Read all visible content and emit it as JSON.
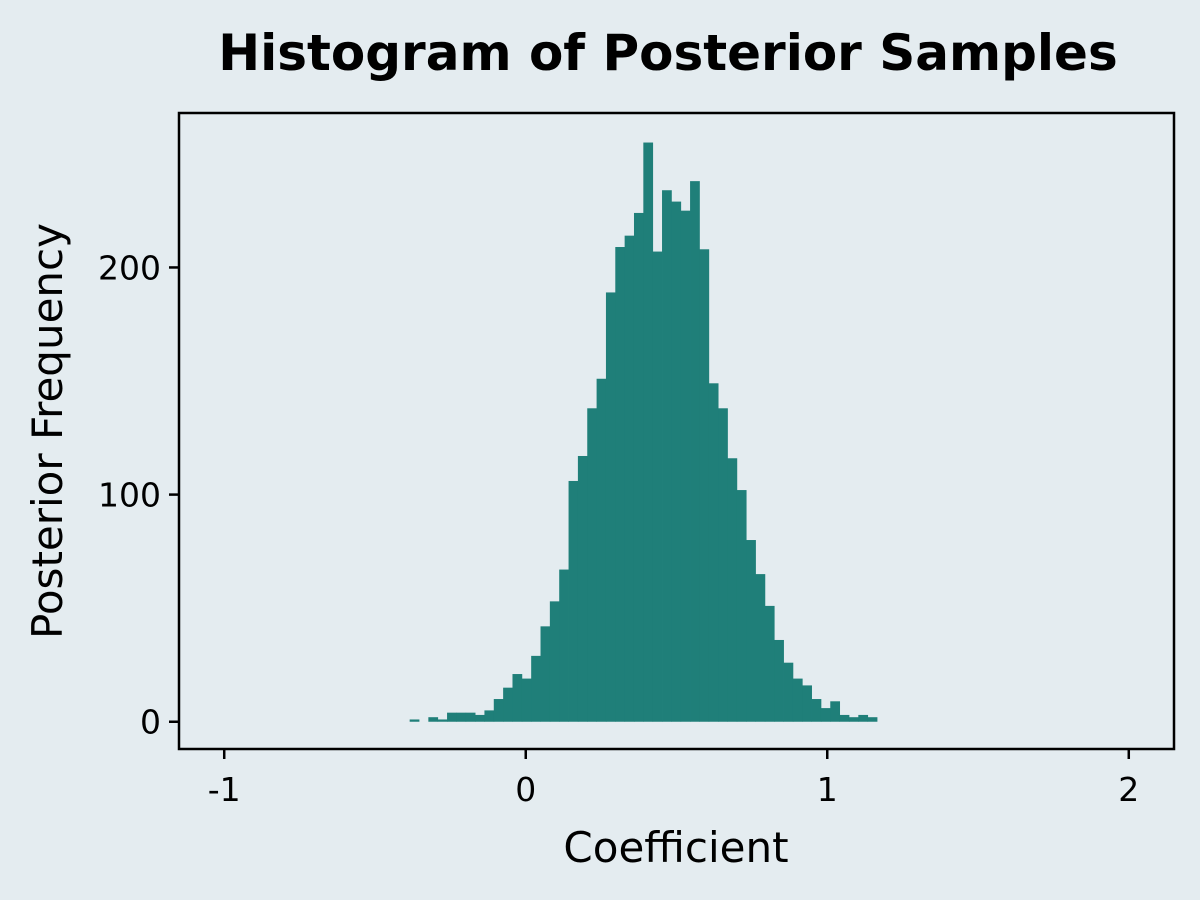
{
  "chart_data": {
    "type": "bar",
    "title": "Histogram of Posterior Samples",
    "xlabel": "Coefficient",
    "ylabel": "Posterior Frequency",
    "xlim": [
      -1.15,
      2.15
    ],
    "ylim": [
      -12,
      268
    ],
    "x_ticks": [
      -1,
      0,
      1,
      2
    ],
    "x_tick_labels": [
      "-1",
      "0",
      "1",
      "2"
    ],
    "y_ticks": [
      0,
      100,
      200
    ],
    "y_tick_labels": [
      "0",
      "100",
      "200"
    ],
    "grid": false,
    "bar_color": "#1f7f79",
    "bin_width": 0.031,
    "bin_start": -0.385,
    "values": [
      1,
      0,
      2,
      1,
      4,
      4,
      4,
      3,
      5,
      10,
      15,
      21,
      19,
      29,
      42,
      53,
      67,
      106,
      117,
      138,
      151,
      189,
      209,
      214,
      224,
      255,
      207,
      234,
      229,
      225,
      238,
      208,
      149,
      138,
      116,
      102,
      80,
      65,
      51,
      36,
      26,
      19,
      16,
      10,
      6,
      9,
      3,
      2,
      3,
      2
    ]
  }
}
